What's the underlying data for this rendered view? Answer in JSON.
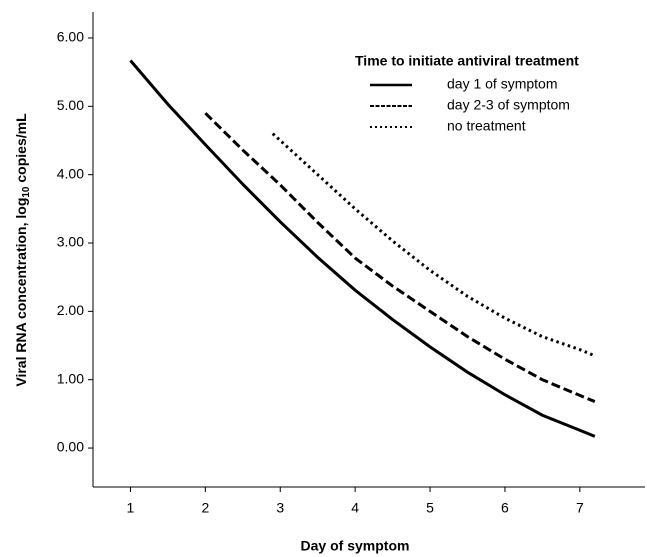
{
  "chart_data": {
    "type": "line",
    "xlabel": "Day of symptom",
    "ylabel": "Viral RNA concentration, log",
    "ylabel_subscript": "10",
    "ylabel_suffix": " copies/mL",
    "legend_title": "Time to initiate antiviral treatment",
    "legend_position": "top-right",
    "grid": false,
    "xlim": [
      0.5,
      7.87
    ],
    "ylim": [
      -0.57,
      6.38
    ],
    "xticks": [
      1,
      2,
      3,
      4,
      5,
      6,
      7
    ],
    "yticks": [
      {
        "value": 0,
        "label": "0.00"
      },
      {
        "value": 1,
        "label": "1.00"
      },
      {
        "value": 2,
        "label": "2.00"
      },
      {
        "value": 3,
        "label": "3.00"
      },
      {
        "value": 4,
        "label": "4.00"
      },
      {
        "value": 5,
        "label": "5.00"
      },
      {
        "value": 6,
        "label": "6.00"
      }
    ],
    "series": [
      {
        "name": "day 1 of symptom",
        "color": "#000000",
        "dash": "solid",
        "x": [
          1,
          1.5,
          2,
          2.5,
          3,
          3.5,
          4,
          4.5,
          5,
          5.5,
          6,
          6.5,
          7,
          7.2
        ],
        "values": [
          5.67,
          5.03,
          4.44,
          3.86,
          3.31,
          2.79,
          2.31,
          1.88,
          1.48,
          1.11,
          0.78,
          0.48,
          0.26,
          0.17
        ]
      },
      {
        "name": "day 2-3 of symptom",
        "color": "#000000",
        "dash": "dashed",
        "x": [
          2,
          2.5,
          3,
          3.5,
          4,
          4.5,
          5,
          5.5,
          6,
          6.5,
          7,
          7.2
        ],
        "values": [
          4.9,
          4.36,
          3.85,
          3.3,
          2.78,
          2.37,
          2.0,
          1.63,
          1.3,
          1.0,
          0.77,
          0.68
        ]
      },
      {
        "name": "no treatment",
        "color": "#000000",
        "dash": "dotted",
        "x": [
          2.9,
          3.5,
          4,
          4.5,
          5,
          5.5,
          6,
          6.5,
          7,
          7.2
        ],
        "values": [
          4.6,
          4.0,
          3.5,
          3.03,
          2.6,
          2.22,
          1.9,
          1.63,
          1.44,
          1.35
        ]
      }
    ]
  }
}
